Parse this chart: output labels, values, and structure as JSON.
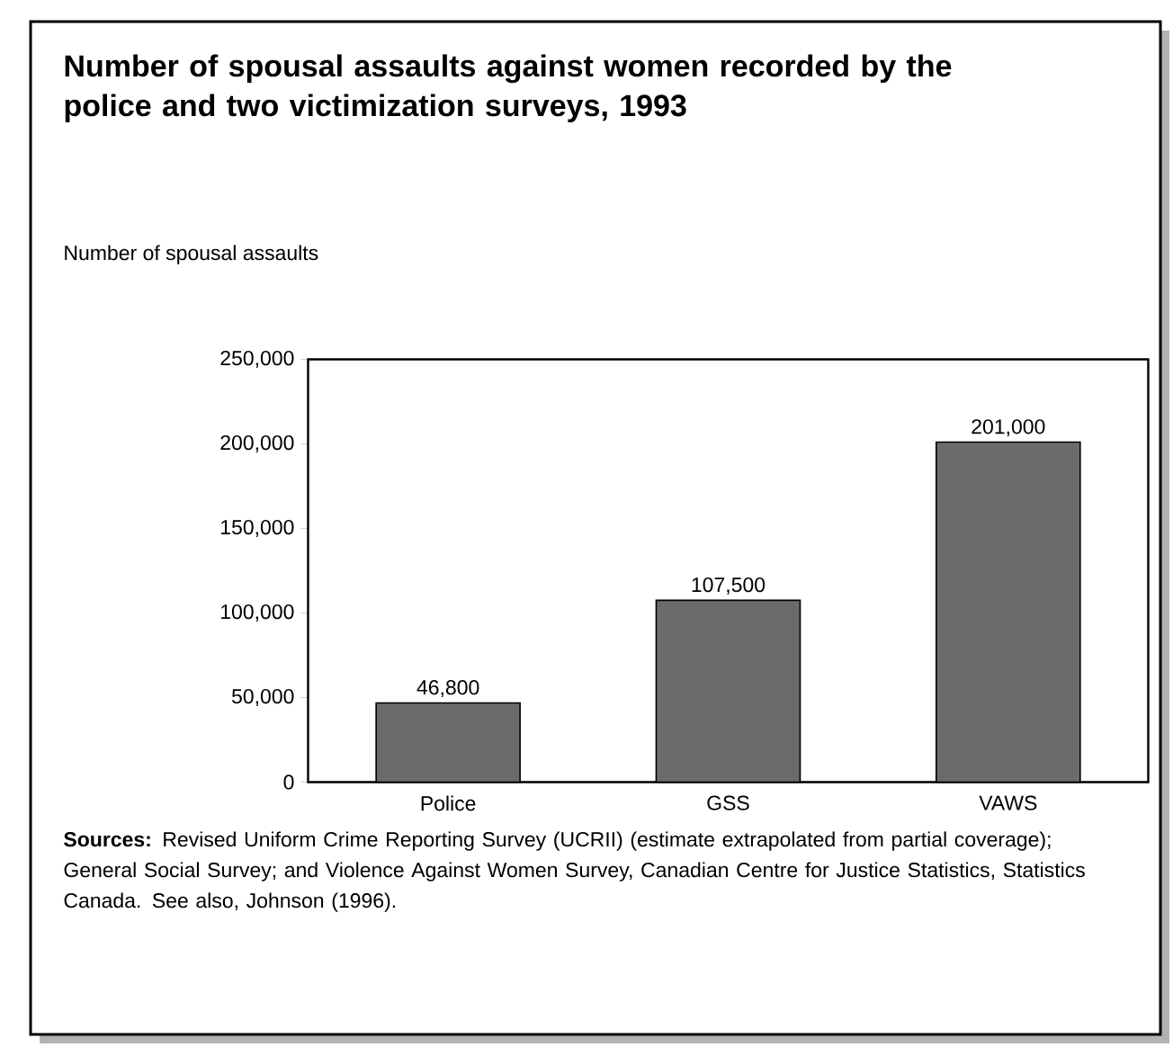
{
  "chart_data": {
    "type": "bar",
    "title": "Number of spousal assaults against women recorded by the police and two victimization surveys, 1993",
    "ylabel": "Number of spousal assaults",
    "categories": [
      "Police",
      "GSS",
      "VAWS"
    ],
    "values": [
      46800,
      107500,
      201000
    ],
    "value_labels": [
      "46,800",
      "107,500",
      "201,000"
    ],
    "color": "#6b6b6b",
    "ylim": [
      0,
      250000
    ],
    "yticks": [
      0,
      {
        "value": 50000,
        "label": "50,000"
      },
      {
        "value": 100000,
        "label": "100,000"
      },
      {
        "value": 150000,
        "label": "150,000"
      },
      {
        "value": 200000,
        "label": "200,000"
      },
      {
        "value": 250000,
        "label": "250,000"
      }
    ],
    "annotations": [
      "**Sources:** Revised Uniform Crime Reporting Survey (UCRII) (estimate extrapolated from partial coverage); General Social Survey; and Violence Against Women Survey, Canadian Centre for Justice Statistics, Statistics Canada. See also, Johnson (1996)."
    ]
  }
}
